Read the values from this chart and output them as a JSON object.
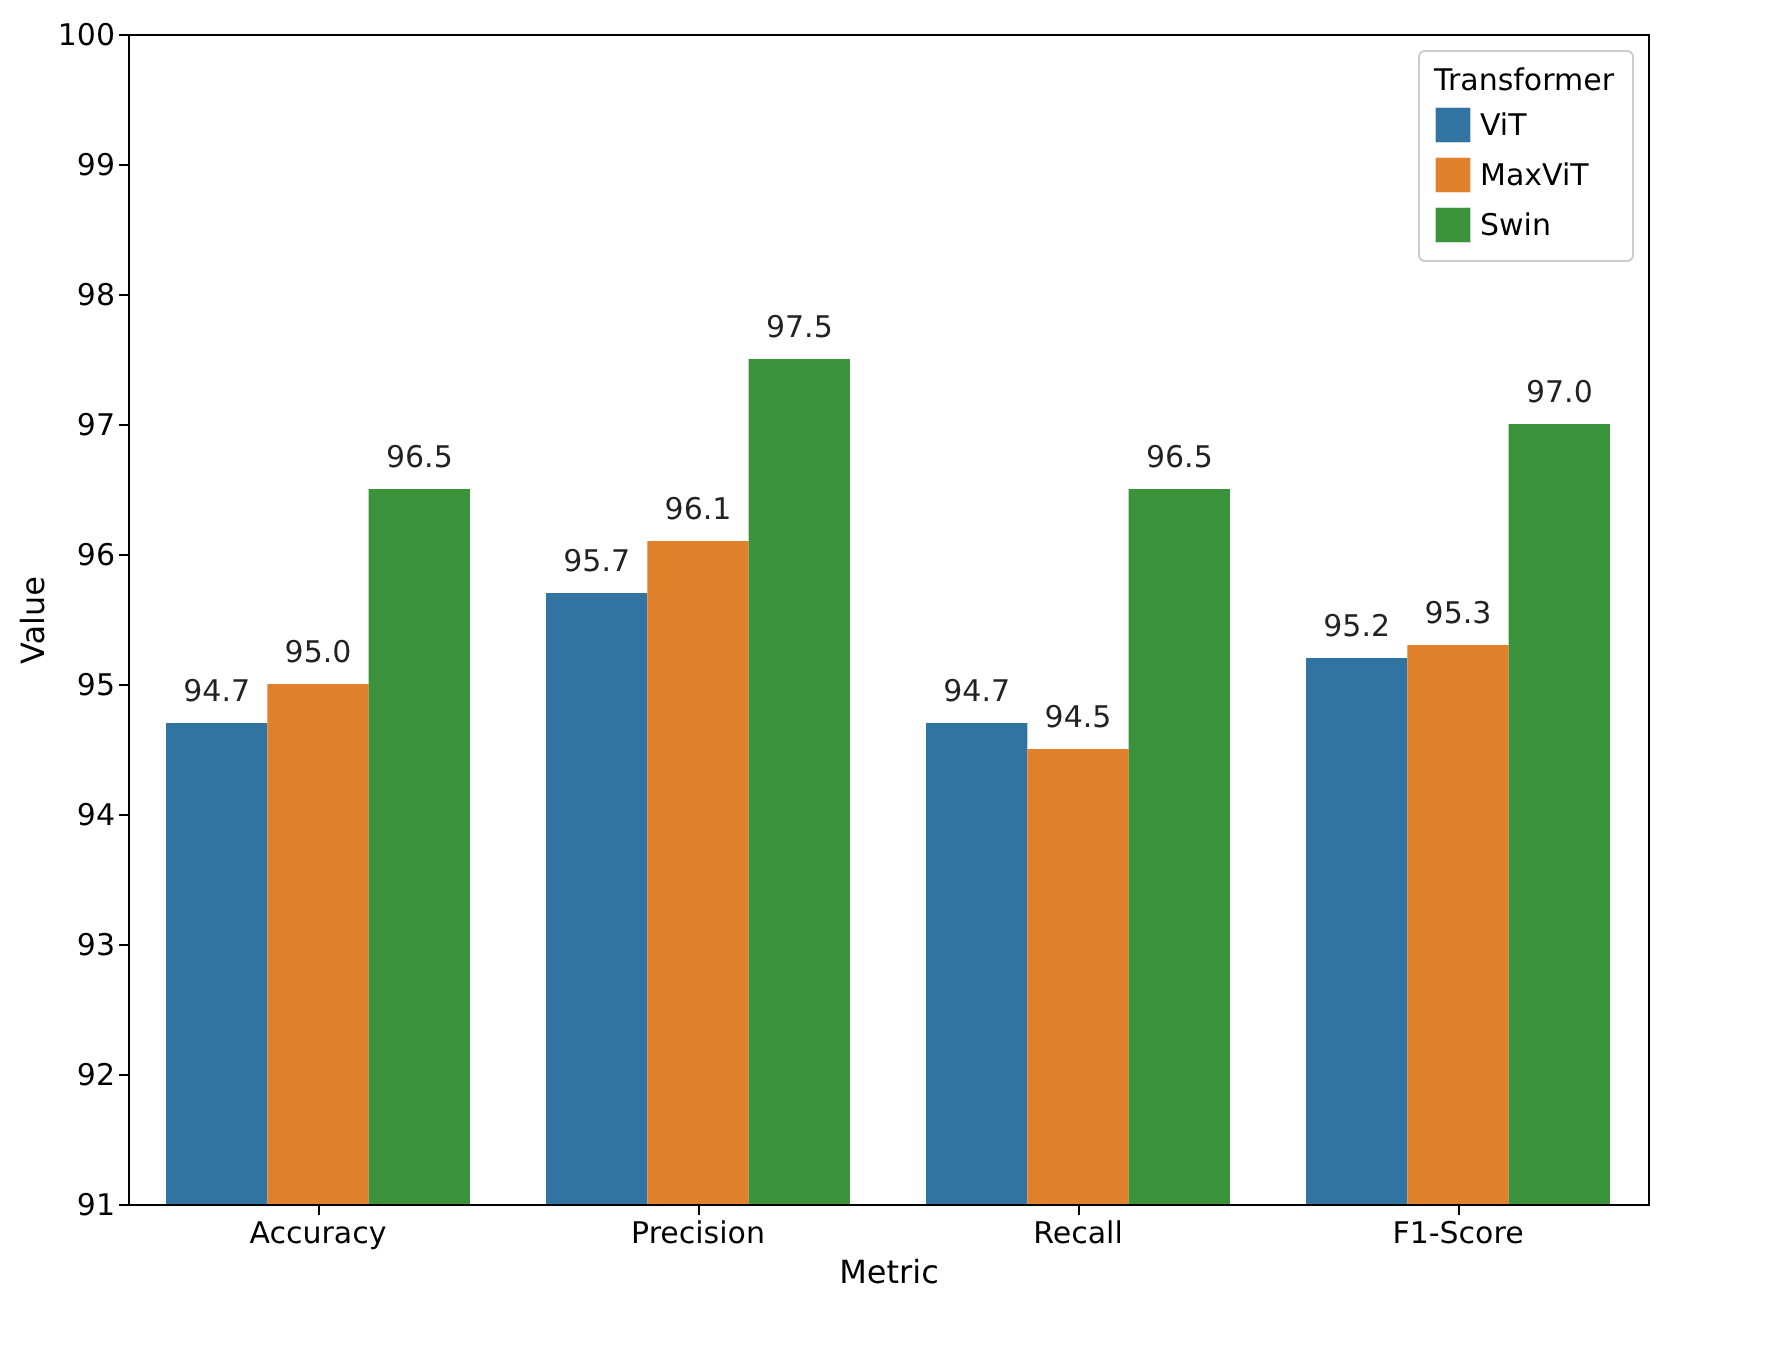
{
  "chart_data": {
    "type": "bar",
    "xlabel": "Metric",
    "ylabel": "Value",
    "legend_title": "Transformer",
    "categories": [
      "Accuracy",
      "Precision",
      "Recall",
      "F1-Score"
    ],
    "series": [
      {
        "name": "ViT",
        "color": "#3274a1",
        "values": [
          94.7,
          95.7,
          94.7,
          95.2
        ],
        "value_labels": [
          "94.7",
          "95.7",
          "94.7",
          "95.2"
        ]
      },
      {
        "name": "MaxViT",
        "color": "#e1812c",
        "values": [
          95.0,
          96.1,
          94.5,
          95.3
        ],
        "value_labels": [
          "95.0",
          "96.1",
          "94.5",
          "95.3"
        ]
      },
      {
        "name": "Swin",
        "color": "#3a923a",
        "values": [
          96.5,
          97.5,
          96.5,
          97.0
        ],
        "value_labels": [
          "96.5",
          "97.5",
          "96.5",
          "97.0"
        ]
      }
    ],
    "ylim": [
      91,
      100
    ],
    "yticks": [
      91,
      92,
      93,
      94,
      95,
      96,
      97,
      98,
      99,
      100
    ],
    "grid": false,
    "legend": "top right"
  }
}
